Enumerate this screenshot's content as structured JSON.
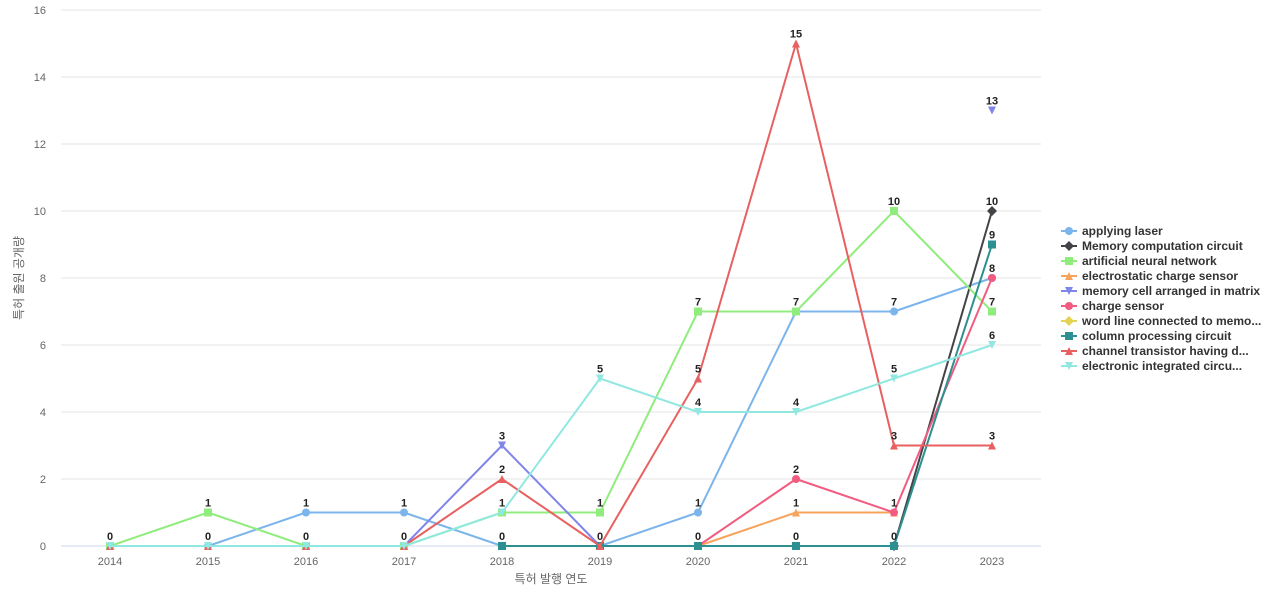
{
  "chart_data": {
    "type": "line",
    "title": "",
    "xlabel": "특허 발행 연도",
    "ylabel": "특허 출원 공개량",
    "ylim": [
      0,
      16
    ],
    "yticks": [
      0,
      2,
      4,
      6,
      8,
      10,
      12,
      14,
      16
    ],
    "categories": [
      "2014",
      "2015",
      "2016",
      "2017",
      "2018",
      "2019",
      "2020",
      "2021",
      "2022",
      "2023"
    ],
    "grid": "horizontal",
    "legend_position": "right",
    "series": [
      {
        "name": "applying laser",
        "color": "#7cb5ec",
        "marker": "circle",
        "values": [
          null,
          0,
          1,
          1,
          0,
          0,
          1,
          7,
          7,
          8
        ]
      },
      {
        "name": "Memory computation circuit",
        "color": "#434348",
        "marker": "diamond",
        "values": [
          null,
          null,
          null,
          null,
          null,
          null,
          null,
          null,
          0,
          10
        ]
      },
      {
        "name": "artificial neural network",
        "color": "#90ed7d",
        "marker": "square",
        "values": [
          0,
          1,
          0,
          0,
          1,
          1,
          7,
          7,
          10,
          7
        ]
      },
      {
        "name": "electrostatic charge sensor",
        "color": "#f7a35c",
        "marker": "triangle",
        "values": [
          null,
          null,
          null,
          null,
          null,
          null,
          0,
          1,
          1,
          null
        ]
      },
      {
        "name": "memory cell arranged in matrix",
        "color": "#8085e9",
        "marker": "triangle-down",
        "values": [
          null,
          null,
          null,
          0,
          3,
          0,
          null,
          null,
          null,
          13
        ]
      },
      {
        "name": "charge sensor",
        "color": "#f15c80",
        "marker": "circle",
        "values": [
          null,
          null,
          null,
          null,
          null,
          null,
          0,
          2,
          1,
          8
        ]
      },
      {
        "name": "word line connected to memo...",
        "color": "#e4d354",
        "marker": "diamond",
        "values": [
          null,
          null,
          null,
          null,
          null,
          null,
          null,
          null,
          null,
          null
        ]
      },
      {
        "name": "column processing circuit",
        "color": "#2b908f",
        "marker": "square",
        "values": [
          null,
          null,
          null,
          null,
          0,
          0,
          0,
          0,
          0,
          9
        ]
      },
      {
        "name": "channel transistor having d...",
        "color": "#e86060",
        "marker": "triangle",
        "values": [
          0,
          0,
          0,
          0,
          2,
          0,
          5,
          15,
          3,
          3
        ]
      },
      {
        "name": "electronic integrated circu...",
        "color": "#91e8e1",
        "marker": "triangle-down",
        "values": [
          0,
          0,
          0,
          0,
          1,
          5,
          4,
          4,
          5,
          6
        ]
      }
    ],
    "data_labels": [
      {
        "x": "2014",
        "y": 0,
        "text": "0"
      },
      {
        "x": "2015",
        "y": 1,
        "text": "1"
      },
      {
        "x": "2015",
        "y": 0,
        "text": "0"
      },
      {
        "x": "2016",
        "y": 1,
        "text": "1"
      },
      {
        "x": "2016",
        "y": 0,
        "text": "0"
      },
      {
        "x": "2017",
        "y": 1,
        "text": "1"
      },
      {
        "x": "2017",
        "y": 0,
        "text": "0"
      },
      {
        "x": "2018",
        "y": 3,
        "text": "3"
      },
      {
        "x": "2018",
        "y": 2,
        "text": "2"
      },
      {
        "x": "2018",
        "y": 1,
        "text": "1"
      },
      {
        "x": "2018",
        "y": 0,
        "text": "0"
      },
      {
        "x": "2019",
        "y": 5,
        "text": "5"
      },
      {
        "x": "2019",
        "y": 1,
        "text": "1"
      },
      {
        "x": "2019",
        "y": 0,
        "text": "0"
      },
      {
        "x": "2020",
        "y": 7,
        "text": "7"
      },
      {
        "x": "2020",
        "y": 5,
        "text": "5"
      },
      {
        "x": "2020",
        "y": 4,
        "text": "4"
      },
      {
        "x": "2020",
        "y": 1,
        "text": "1"
      },
      {
        "x": "2020",
        "y": 0,
        "text": "0"
      },
      {
        "x": "2021",
        "y": 15,
        "text": "15"
      },
      {
        "x": "2021",
        "y": 7,
        "text": "7"
      },
      {
        "x": "2021",
        "y": 4,
        "text": "4"
      },
      {
        "x": "2021",
        "y": 2,
        "text": "2"
      },
      {
        "x": "2021",
        "y": 1,
        "text": "1"
      },
      {
        "x": "2021",
        "y": 0,
        "text": "0"
      },
      {
        "x": "2022",
        "y": 10,
        "text": "10"
      },
      {
        "x": "2022",
        "y": 7,
        "text": "7"
      },
      {
        "x": "2022",
        "y": 5,
        "text": "5"
      },
      {
        "x": "2022",
        "y": 3,
        "text": "3"
      },
      {
        "x": "2022",
        "y": 1,
        "text": "1"
      },
      {
        "x": "2022",
        "y": 0,
        "text": "0"
      },
      {
        "x": "2023",
        "y": 13,
        "text": "13"
      },
      {
        "x": "2023",
        "y": 10,
        "text": "10"
      },
      {
        "x": "2023",
        "y": 9,
        "text": "9"
      },
      {
        "x": "2023",
        "y": 8,
        "text": "8"
      },
      {
        "x": "2023",
        "y": 7,
        "text": "7"
      },
      {
        "x": "2023",
        "y": 6,
        "text": "6"
      },
      {
        "x": "2023",
        "y": 3,
        "text": "3"
      }
    ]
  }
}
